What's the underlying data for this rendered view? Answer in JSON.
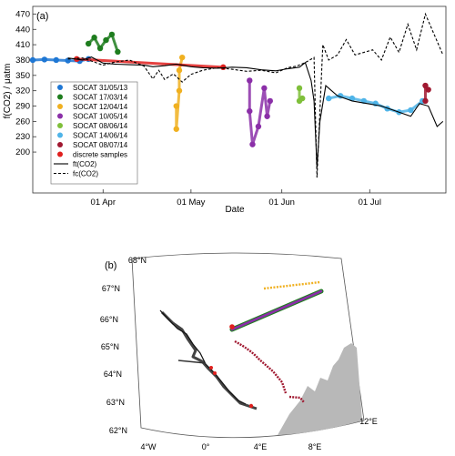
{
  "chart_data": [
    {
      "type": "line",
      "panel_label": "(a)",
      "xlabel": "Date",
      "ylabel": "f(CO2) / μatm",
      "ylim": [
        120,
        485
      ],
      "xlim": [
        "2014-03-08",
        "2014-07-27"
      ],
      "x_ticks": [
        {
          "date": "2014-04-01",
          "label": "01 Apr"
        },
        {
          "date": "2014-05-01",
          "label": "01 May"
        },
        {
          "date": "2014-06-01",
          "label": "01 Jun"
        },
        {
          "date": "2014-07-01",
          "label": "01 Jul"
        }
      ],
      "y_ticks": [
        200,
        230,
        260,
        290,
        320,
        350,
        380,
        410,
        440,
        470
      ],
      "grid": false,
      "legend_position": "bottom-left",
      "legend": [
        {
          "label": "SOCAT 31/05/13",
          "marker": "dot",
          "color": "#1f77d4"
        },
        {
          "label": "SOCAT 17/03/14",
          "marker": "dot",
          "color": "#1e7d1e"
        },
        {
          "label": "SOCAT 12/04/14",
          "marker": "dot",
          "color": "#f0b020"
        },
        {
          "label": "SOCAT 10/05/14",
          "marker": "dot",
          "color": "#8b2fa8"
        },
        {
          "label": "SOCAT 08/06/14",
          "marker": "dot",
          "color": "#7fbf3a"
        },
        {
          "label": "SOCAT 14/06/14",
          "marker": "dot",
          "color": "#4fb4e8"
        },
        {
          "label": "SOCAT 08/07/14",
          "marker": "dot",
          "color": "#a01830"
        },
        {
          "label": "discrete samples",
          "marker": "dot",
          "color": "#e0201e"
        },
        {
          "label": "ft(CO2)",
          "marker": "solid",
          "color": "#000000"
        },
        {
          "label": "fc(CO2)",
          "marker": "dashed",
          "color": "#000000"
        }
      ],
      "series": [
        {
          "name": "ft(CO2)",
          "style": "solid",
          "color": "#000000",
          "x": [
            "2014-03-20",
            "2014-03-25",
            "2014-03-28",
            "2014-04-01",
            "2014-04-05",
            "2014-04-10",
            "2014-04-15",
            "2014-04-18",
            "2014-04-22",
            "2014-04-26",
            "2014-05-01",
            "2014-05-05",
            "2014-05-10",
            "2014-05-15",
            "2014-05-20",
            "2014-05-25",
            "2014-05-30",
            "2014-06-03",
            "2014-06-07",
            "2014-06-09",
            "2014-06-11",
            "2014-06-12",
            "2014-06-13",
            "2014-06-14",
            "2014-06-16",
            "2014-06-20",
            "2014-06-25",
            "2014-06-30",
            "2014-07-05",
            "2014-07-10",
            "2014-07-15",
            "2014-07-18",
            "2014-07-21",
            "2014-07-24",
            "2014-07-26"
          ],
          "y": [
            384,
            380,
            386,
            374,
            372,
            371,
            370,
            367,
            369,
            372,
            367,
            365,
            364,
            366,
            365,
            361,
            359,
            363,
            366,
            375,
            340,
            300,
            170,
            260,
            330,
            310,
            300,
            295,
            290,
            280,
            270,
            295,
            290,
            250,
            260
          ]
        },
        {
          "name": "fc(CO2)",
          "style": "dashed",
          "color": "#000000",
          "x": [
            "2014-03-20",
            "2014-03-25",
            "2014-04-01",
            "2014-04-05",
            "2014-04-10",
            "2014-04-15",
            "2014-04-18",
            "2014-04-20",
            "2014-04-22",
            "2014-04-25",
            "2014-04-28",
            "2014-05-01",
            "2014-05-05",
            "2014-05-10",
            "2014-05-15",
            "2014-05-20",
            "2014-05-25",
            "2014-05-30",
            "2014-06-03",
            "2014-06-06",
            "2014-06-09",
            "2014-06-12",
            "2014-06-13",
            "2014-06-15",
            "2014-06-17",
            "2014-06-20",
            "2014-06-23",
            "2014-06-26",
            "2014-06-29",
            "2014-07-02",
            "2014-07-05",
            "2014-07-08",
            "2014-07-11",
            "2014-07-14",
            "2014-07-17",
            "2014-07-20",
            "2014-07-23",
            "2014-07-26"
          ],
          "y": [
            382,
            384,
            370,
            376,
            380,
            368,
            343,
            360,
            342,
            353,
            337,
            352,
            360,
            365,
            362,
            358,
            360,
            355,
            365,
            368,
            375,
            385,
            150,
            410,
            380,
            390,
            420,
            390,
            395,
            400,
            380,
            425,
            395,
            450,
            400,
            470,
            430,
            390
          ]
        },
        {
          "name": "SOCAT 31/05/13",
          "style": "points",
          "color": "#1f77d4",
          "x": [
            "2014-03-08",
            "2014-03-12",
            "2014-03-16",
            "2014-03-20",
            "2014-03-24",
            "2014-03-27"
          ],
          "y": [
            380,
            381,
            380,
            379,
            378,
            382
          ]
        },
        {
          "name": "SOCAT 17/03/14",
          "style": "points",
          "color": "#1e7d1e",
          "x": [
            "2014-03-27",
            "2014-03-29",
            "2014-03-31",
            "2014-04-02",
            "2014-04-04",
            "2014-04-06"
          ],
          "y": [
            412,
            424,
            403,
            419,
            430,
            396
          ]
        },
        {
          "name": "SOCAT 12/04/14",
          "style": "points",
          "color": "#f0b020",
          "x": [
            "2014-04-26",
            "2014-04-26",
            "2014-04-27",
            "2014-04-27",
            "2014-04-28"
          ],
          "y": [
            290,
            245,
            320,
            360,
            385
          ]
        },
        {
          "name": "SOCAT 10/05/14",
          "style": "points",
          "color": "#8b2fa8",
          "x": [
            "2014-05-21",
            "2014-05-21",
            "2014-05-22",
            "2014-05-24",
            "2014-05-26",
            "2014-05-27",
            "2014-05-28"
          ],
          "y": [
            340,
            280,
            215,
            250,
            325,
            270,
            300
          ]
        },
        {
          "name": "SOCAT 08/06/14",
          "style": "points",
          "color": "#7fbf3a",
          "x": [
            "2014-06-07",
            "2014-06-07",
            "2014-06-08"
          ],
          "y": [
            325,
            300,
            305
          ]
        },
        {
          "name": "SOCAT 14/06/14",
          "style": "points",
          "color": "#4fb4e8",
          "x": [
            "2014-06-17",
            "2014-06-21",
            "2014-06-25",
            "2014-06-29",
            "2014-07-03",
            "2014-07-07",
            "2014-07-11",
            "2014-07-15",
            "2014-07-19"
          ],
          "y": [
            305,
            310,
            305,
            300,
            295,
            285,
            278,
            282,
            300
          ]
        },
        {
          "name": "SOCAT 08/07/14",
          "style": "points",
          "color": "#a01830",
          "x": [
            "2014-07-20",
            "2014-07-20",
            "2014-07-21"
          ],
          "y": [
            300,
            330,
            322
          ]
        },
        {
          "name": "discrete samples",
          "style": "points",
          "color": "#e0201e",
          "x": [
            "2014-03-23",
            "2014-05-12"
          ],
          "y": [
            382,
            366
          ]
        }
      ]
    },
    {
      "type": "map",
      "panel_label": "(b)",
      "lat_labels": [
        "62°N",
        "63°N",
        "64°N",
        "65°N",
        "66°N",
        "67°N",
        "68°N"
      ],
      "lon_labels": [
        "4°W",
        "0°",
        "4°E",
        "8°E",
        "12°E"
      ],
      "land_color": "#b8b8b8",
      "tracks": [
        {
          "name": "SOCAT 12/04/14",
          "color": "#f0b020"
        },
        {
          "name": "SOCAT 10/05/14",
          "color": "#8b2fa8"
        },
        {
          "name": "SOCAT 17/03/14",
          "color": "#1e7d1e"
        },
        {
          "name": "SOCAT 08/07/14",
          "color": "#a01830"
        },
        {
          "name": "ship track",
          "color": "#333333"
        },
        {
          "name": "discrete samples",
          "color": "#e0201e"
        }
      ]
    }
  ]
}
